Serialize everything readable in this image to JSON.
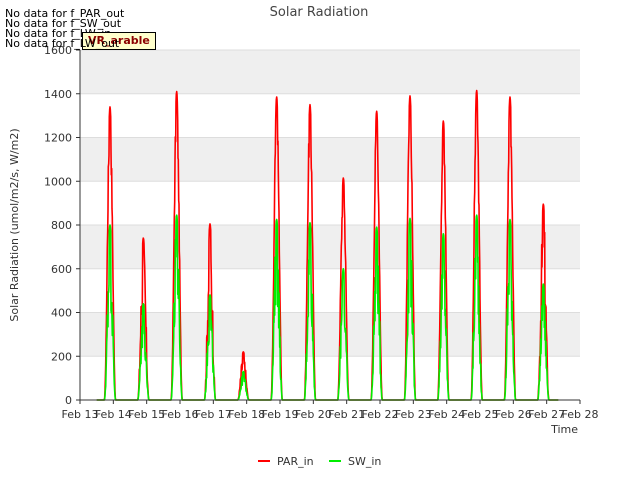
{
  "no_data_messages": [
    "No data for f_PAR_out",
    "No data for f_SW_out",
    "No data for f_LW_in",
    "No data for f_LW_out"
  ],
  "badge": "VR_arable",
  "chart_data": {
    "type": "line",
    "title": "Solar Radiation",
    "xlabel": "Time",
    "ylabel": "Solar Radiation (umol/m2/s, W/m2)",
    "x_ticks": [
      "Feb 13",
      "Feb 14",
      "Feb 15",
      "Feb 16",
      "Feb 17",
      "Feb 18",
      "Feb 19",
      "Feb 20",
      "Feb 21",
      "Feb 22",
      "Feb 23",
      "Feb 24",
      "Feb 25",
      "Feb 26",
      "Feb 27",
      "Feb 28"
    ],
    "y_ticks": [
      0,
      200,
      400,
      600,
      800,
      1000,
      1200,
      1400,
      1600
    ],
    "xlim": [
      13,
      28
    ],
    "ylim": [
      0,
      1600
    ],
    "grid": true,
    "legend_position": "bottom-center",
    "series": [
      {
        "name": "PAR_in",
        "color": "#ff0000",
        "daily_peaks": [
          {
            "day": 13.9,
            "peak": 1340
          },
          {
            "day": 14.9,
            "peak": 740
          },
          {
            "day": 15.9,
            "peak": 1410
          },
          {
            "day": 16.9,
            "peak": 805
          },
          {
            "day": 17.9,
            "peak": 220
          },
          {
            "day": 18.9,
            "peak": 1385
          },
          {
            "day": 19.9,
            "peak": 1350
          },
          {
            "day": 20.9,
            "peak": 1015
          },
          {
            "day": 21.9,
            "peak": 1320
          },
          {
            "day": 22.9,
            "peak": 1390
          },
          {
            "day": 23.9,
            "peak": 1275
          },
          {
            "day": 24.9,
            "peak": 1415
          },
          {
            "day": 25.9,
            "peak": 1385
          },
          {
            "day": 26.9,
            "peak": 895
          }
        ]
      },
      {
        "name": "SW_in",
        "color": "#00ee00",
        "daily_peaks": [
          {
            "day": 13.9,
            "peak": 800
          },
          {
            "day": 14.9,
            "peak": 440
          },
          {
            "day": 15.9,
            "peak": 845
          },
          {
            "day": 16.9,
            "peak": 480
          },
          {
            "day": 17.9,
            "peak": 130
          },
          {
            "day": 18.9,
            "peak": 825
          },
          {
            "day": 19.9,
            "peak": 810
          },
          {
            "day": 20.9,
            "peak": 600
          },
          {
            "day": 21.9,
            "peak": 790
          },
          {
            "day": 22.9,
            "peak": 830
          },
          {
            "day": 23.9,
            "peak": 760
          },
          {
            "day": 24.9,
            "peak": 845
          },
          {
            "day": 25.9,
            "peak": 825
          },
          {
            "day": 26.9,
            "peak": 530
          }
        ]
      }
    ]
  }
}
